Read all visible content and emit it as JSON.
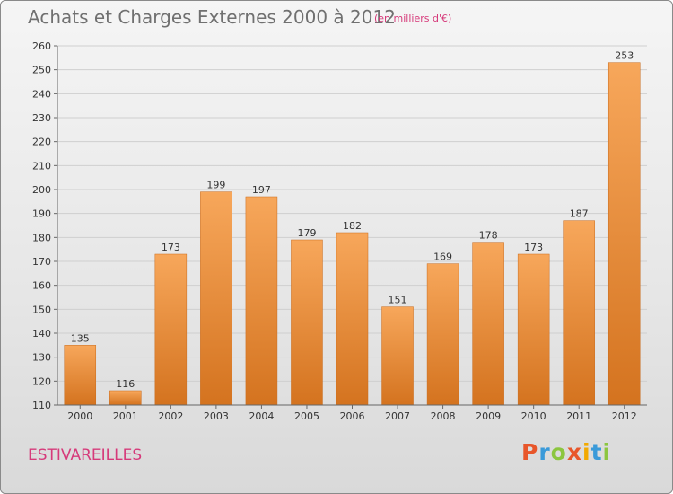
{
  "header": {
    "title": "Achats et Charges Externes 2000 à 2012",
    "subtitle": "(en milliers d'€)"
  },
  "footer": {
    "commune": "ESTIVAREILLES",
    "logo_letters": [
      "P",
      "r",
      "o",
      "x",
      "i",
      "t",
      "i"
    ],
    "logo_colors": [
      "#e8562a",
      "#3a9ad9",
      "#8cc63f",
      "#e8562a",
      "#f2a900",
      "#3a9ad9",
      "#8cc63f"
    ]
  },
  "colors": {
    "bar_light": "#f7a75b",
    "bar_dark": "#d4731f",
    "grid": "#cfcfcf",
    "axis": "#666666"
  },
  "chart_data": {
    "type": "bar",
    "title": "Achats et Charges Externes 2000 à 2012",
    "categories": [
      "2000",
      "2001",
      "2002",
      "2003",
      "2004",
      "2005",
      "2006",
      "2007",
      "2008",
      "2009",
      "2010",
      "2011",
      "2012"
    ],
    "values": [
      135,
      116,
      173,
      199,
      197,
      179,
      182,
      151,
      169,
      178,
      173,
      187,
      253
    ],
    "ylim": [
      110,
      260
    ],
    "yticks": [
      110,
      120,
      130,
      140,
      150,
      160,
      170,
      180,
      190,
      200,
      210,
      220,
      230,
      240,
      250,
      260
    ],
    "grid": true
  }
}
